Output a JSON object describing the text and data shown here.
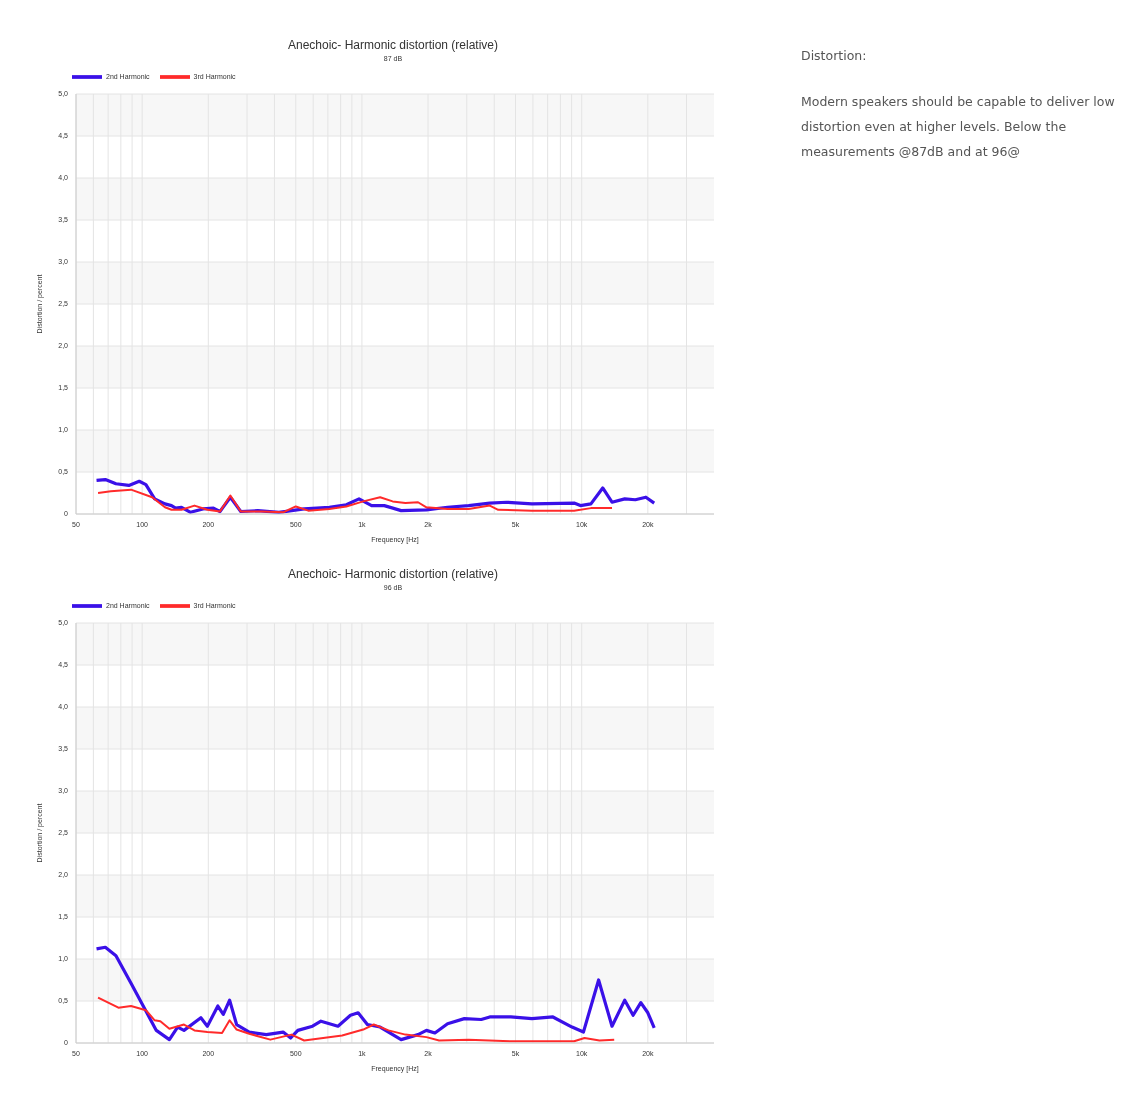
{
  "chart_data": [
    {
      "type": "line",
      "title": "Anechoic- Harmonic distortion (relative)",
      "subtitle": "87 dB",
      "xlabel": "Frequency [Hz]",
      "ylabel": "Distortion / percent",
      "log": "x",
      "grid": true,
      "legend": "top left",
      "marker": "none",
      "line_style": "solid",
      "xlim": [
        50,
        40000
      ],
      "xticks": [
        50,
        {
          "value": 60,
          "label": null
        },
        {
          "value": 70,
          "label": null
        },
        {
          "value": 80,
          "label": null
        },
        {
          "value": 90,
          "label": null
        },
        100,
        200,
        {
          "value": 300,
          "label": null
        },
        {
          "value": 400,
          "label": null
        },
        500,
        {
          "value": 600,
          "label": null
        },
        {
          "value": 700,
          "label": null
        },
        {
          "value": 800,
          "label": null
        },
        {
          "value": 900,
          "label": null
        },
        {
          "value": 1000,
          "label": "1k"
        },
        {
          "value": 2000,
          "label": "2k"
        },
        {
          "value": 3000,
          "label": null
        },
        {
          "value": 4000,
          "label": null
        },
        {
          "value": 5000,
          "label": "5k"
        },
        {
          "value": 6000,
          "label": null
        },
        {
          "value": 7000,
          "label": null
        },
        {
          "value": 8000,
          "label": null
        },
        {
          "value": 9000,
          "label": null
        },
        {
          "value": 10000,
          "label": "10k"
        },
        {
          "value": 20000,
          "label": "20k"
        },
        {
          "value": 30000,
          "label": null
        }
      ],
      "ylim": [
        0,
        5
      ],
      "yticks": [
        0,
        {
          "value": 0.5,
          "label": "0,5"
        },
        {
          "value": 1,
          "label": "1,0"
        },
        {
          "value": 1.5,
          "label": "1,5"
        },
        {
          "value": 2,
          "label": "2,0"
        },
        {
          "value": 2.5,
          "label": "2,5"
        },
        {
          "value": 3,
          "label": "3,0"
        },
        {
          "value": 3.5,
          "label": "3,5"
        },
        {
          "value": 4,
          "label": "4,0"
        },
        {
          "value": 4.5,
          "label": "4,5"
        },
        {
          "value": 5,
          "label": "5,0"
        }
      ],
      "series": [
        {
          "name": "2nd Harmonic",
          "color": "#3a10e8",
          "x": [
            62,
            68,
            76,
            87,
            97,
            104,
            114,
            127,
            136,
            142,
            151,
            166,
            189,
            211,
            226,
            252,
            281,
            336,
            419,
            546,
            711,
            849,
            970,
            1107,
            1264,
            1508,
            1966,
            2453,
            3060,
            3817,
            4550,
            5938,
            9236,
            9864,
            11015,
            12466,
            13740,
            15700,
            17540,
            19590,
            21380
          ],
          "values": [
            0.4,
            0.41,
            0.36,
            0.34,
            0.39,
            0.35,
            0.18,
            0.12,
            0.1,
            0.07,
            0.08,
            0.02,
            0.06,
            0.07,
            0.03,
            0.2,
            0.03,
            0.04,
            0.02,
            0.06,
            0.08,
            0.11,
            0.18,
            0.1,
            0.1,
            0.04,
            0.05,
            0.08,
            0.1,
            0.13,
            0.14,
            0.12,
            0.13,
            0.1,
            0.12,
            0.31,
            0.14,
            0.18,
            0.17,
            0.2,
            0.13
          ]
        },
        {
          "name": "3rd Harmonic",
          "color": "#ff2a2a",
          "x": [
            63,
            72,
            89,
            111,
            127,
            136,
            151,
            173,
            198,
            226,
            252,
            281,
            351,
            438,
            500,
            570,
            711,
            849,
            1014,
            1210,
            1380,
            1577,
            1800,
            1966,
            2453,
            3060,
            3817,
            4169,
            5938,
            9236,
            11015,
            13740
          ],
          "values": [
            0.25,
            0.27,
            0.29,
            0.2,
            0.08,
            0.05,
            0.05,
            0.1,
            0.05,
            0.03,
            0.22,
            0.03,
            0.03,
            0.02,
            0.09,
            0.04,
            0.06,
            0.09,
            0.15,
            0.2,
            0.15,
            0.13,
            0.14,
            0.08,
            0.06,
            0.06,
            0.1,
            0.05,
            0.04,
            0.04,
            0.07,
            0.07
          ]
        }
      ]
    },
    {
      "type": "line",
      "title": "Anechoic- Harmonic distortion (relative)",
      "subtitle": "96 dB",
      "xlabel": "Frequency [Hz]",
      "ylabel": "Distortion / percent",
      "log": "x",
      "grid": true,
      "legend": "top left",
      "marker": "none",
      "line_style": "solid",
      "xlim": [
        50,
        40000
      ],
      "xticks": [
        50,
        {
          "value": 60,
          "label": null
        },
        {
          "value": 70,
          "label": null
        },
        {
          "value": 80,
          "label": null
        },
        {
          "value": 90,
          "label": null
        },
        100,
        200,
        {
          "value": 300,
          "label": null
        },
        {
          "value": 400,
          "label": null
        },
        500,
        {
          "value": 600,
          "label": null
        },
        {
          "value": 700,
          "label": null
        },
        {
          "value": 800,
          "label": null
        },
        {
          "value": 900,
          "label": null
        },
        {
          "value": 1000,
          "label": "1k"
        },
        {
          "value": 2000,
          "label": "2k"
        },
        {
          "value": 3000,
          "label": null
        },
        {
          "value": 4000,
          "label": null
        },
        {
          "value": 5000,
          "label": "5k"
        },
        {
          "value": 6000,
          "label": null
        },
        {
          "value": 7000,
          "label": null
        },
        {
          "value": 8000,
          "label": null
        },
        {
          "value": 9000,
          "label": null
        },
        {
          "value": 10000,
          "label": "10k"
        },
        {
          "value": 20000,
          "label": "20k"
        },
        {
          "value": 30000,
          "label": null
        }
      ],
      "ylim": [
        0,
        5
      ],
      "yticks": [
        0,
        {
          "value": 0.5,
          "label": "0,5"
        },
        {
          "value": 1,
          "label": "1,0"
        },
        {
          "value": 1.5,
          "label": "1,5"
        },
        {
          "value": 2,
          "label": "2,0"
        },
        {
          "value": 2.5,
          "label": "2,5"
        },
        {
          "value": 3,
          "label": "3,0"
        },
        {
          "value": 3.5,
          "label": "3,5"
        },
        {
          "value": 4,
          "label": "4,0"
        },
        {
          "value": 4.5,
          "label": "4,5"
        },
        {
          "value": 5,
          "label": "5,0"
        }
      ],
      "series": [
        {
          "name": "2nd Harmonic",
          "color": "#3a10e8",
          "x": [
            62,
            68,
            76,
            89,
            104,
            116,
            133,
            145,
            155,
            185,
            198,
            221,
            234,
            250,
            269,
            307,
            367,
            438,
            474,
            511,
            596,
            651,
            778,
            887,
            961,
            1059,
            1210,
            1508,
            1800,
            1966,
            2148,
            2453,
            2925,
            3491,
            3817,
            4760,
            5938,
            7398,
            9037,
            10184,
            11940,
            13740,
            15700,
            17140,
            18580,
            20000,
            21380
          ],
          "values": [
            1.12,
            1.14,
            1.04,
            0.71,
            0.38,
            0.15,
            0.04,
            0.19,
            0.15,
            0.3,
            0.2,
            0.44,
            0.34,
            0.51,
            0.22,
            0.13,
            0.1,
            0.13,
            0.06,
            0.15,
            0.2,
            0.26,
            0.2,
            0.33,
            0.36,
            0.22,
            0.19,
            0.04,
            0.1,
            0.15,
            0.12,
            0.23,
            0.29,
            0.28,
            0.31,
            0.31,
            0.29,
            0.31,
            0.19,
            0.13,
            0.75,
            0.2,
            0.51,
            0.33,
            0.48,
            0.36,
            0.18
          ]
        },
        {
          "name": "3rd Harmonic",
          "color": "#ff2a2a",
          "x": [
            63,
            78,
            89,
            104,
            114,
            121,
            133,
            155,
            173,
            198,
            231,
            250,
            269,
            307,
            383,
            478,
            546,
            813,
            1014,
            1132,
            1321,
            1577,
            1966,
            2245,
            3060,
            4760,
            9236,
            10304,
            12050,
            14060
          ],
          "values": [
            0.54,
            0.42,
            0.44,
            0.39,
            0.27,
            0.26,
            0.17,
            0.22,
            0.15,
            0.13,
            0.12,
            0.27,
            0.16,
            0.11,
            0.04,
            0.1,
            0.03,
            0.09,
            0.16,
            0.22,
            0.15,
            0.1,
            0.07,
            0.03,
            0.04,
            0.02,
            0.02,
            0.06,
            0.03,
            0.04
          ]
        }
      ]
    },
    {
      "type": "other",
      "title": "Distortion:",
      "annotations": [
        "Modern speakers should be capable to deliver low distortion even at higher levels. Below the measurements @87dB and at 96@"
      ]
    }
  ]
}
